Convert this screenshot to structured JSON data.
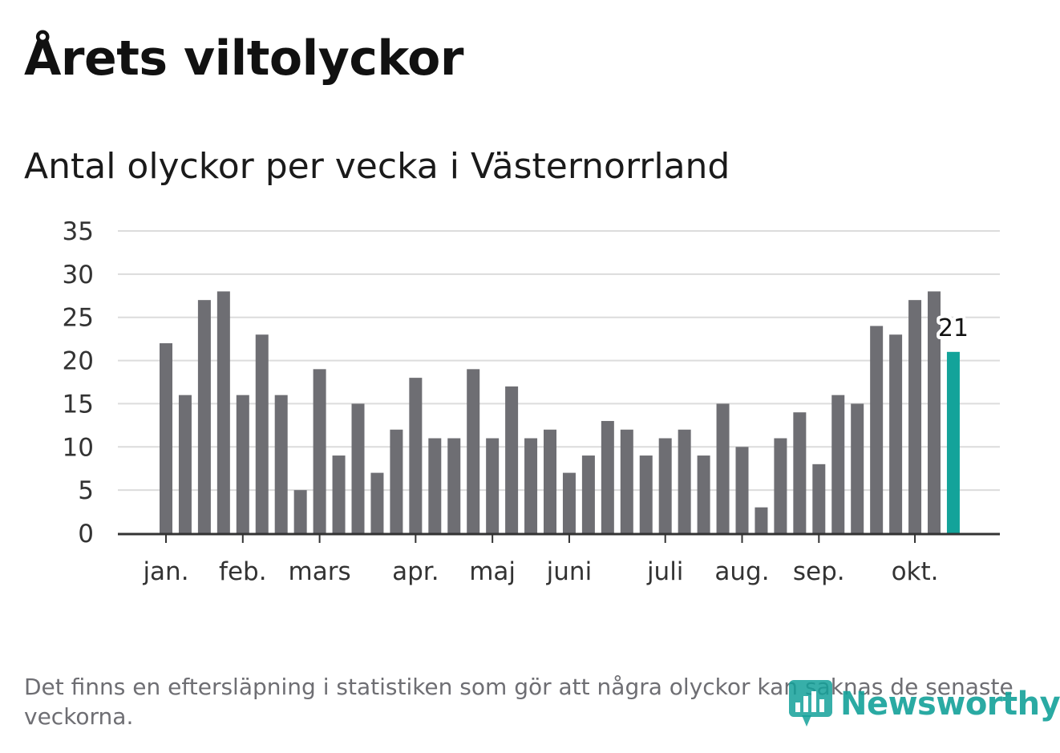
{
  "header": {
    "title": "Årets viltolyckor",
    "subtitle": "Antal olyckor per vecka i Västernorrland"
  },
  "footer": {
    "note": "Det finns en eftersläpning i statistiken som gör att några olyckor kan saknas de senaste veckorna.",
    "brand": "Newsworthy"
  },
  "colors": {
    "bar": "#6e6e73",
    "highlight": "#13a39a",
    "grid": "#dcdcdc",
    "axis": "#333333",
    "brand": "#14a19a"
  },
  "chart_data": {
    "type": "bar",
    "title": "Antal olyckor per vecka i Västernorrland",
    "xlabel": "",
    "ylabel": "",
    "ylim": [
      0,
      35
    ],
    "yticks": [
      0,
      5,
      10,
      15,
      20,
      25,
      30,
      35
    ],
    "grid": true,
    "values": [
      22,
      16,
      27,
      28,
      16,
      23,
      16,
      5,
      19,
      9,
      15,
      7,
      12,
      18,
      11,
      11,
      19,
      11,
      17,
      11,
      12,
      7,
      9,
      13,
      12,
      9,
      11,
      12,
      9,
      15,
      10,
      3,
      11,
      14,
      8,
      16,
      15,
      24,
      23,
      27,
      28,
      21
    ],
    "highlight_index": 41,
    "highlight_label": "21",
    "month_ticks": [
      {
        "label": "jan.",
        "week_index": 0
      },
      {
        "label": "feb.",
        "week_index": 4
      },
      {
        "label": "mars",
        "week_index": 8
      },
      {
        "label": "apr.",
        "week_index": 13
      },
      {
        "label": "maj",
        "week_index": 17
      },
      {
        "label": "juni",
        "week_index": 21
      },
      {
        "label": "juli",
        "week_index": 26
      },
      {
        "label": "aug.",
        "week_index": 30
      },
      {
        "label": "sep.",
        "week_index": 34
      },
      {
        "label": "okt.",
        "week_index": 39
      }
    ]
  }
}
